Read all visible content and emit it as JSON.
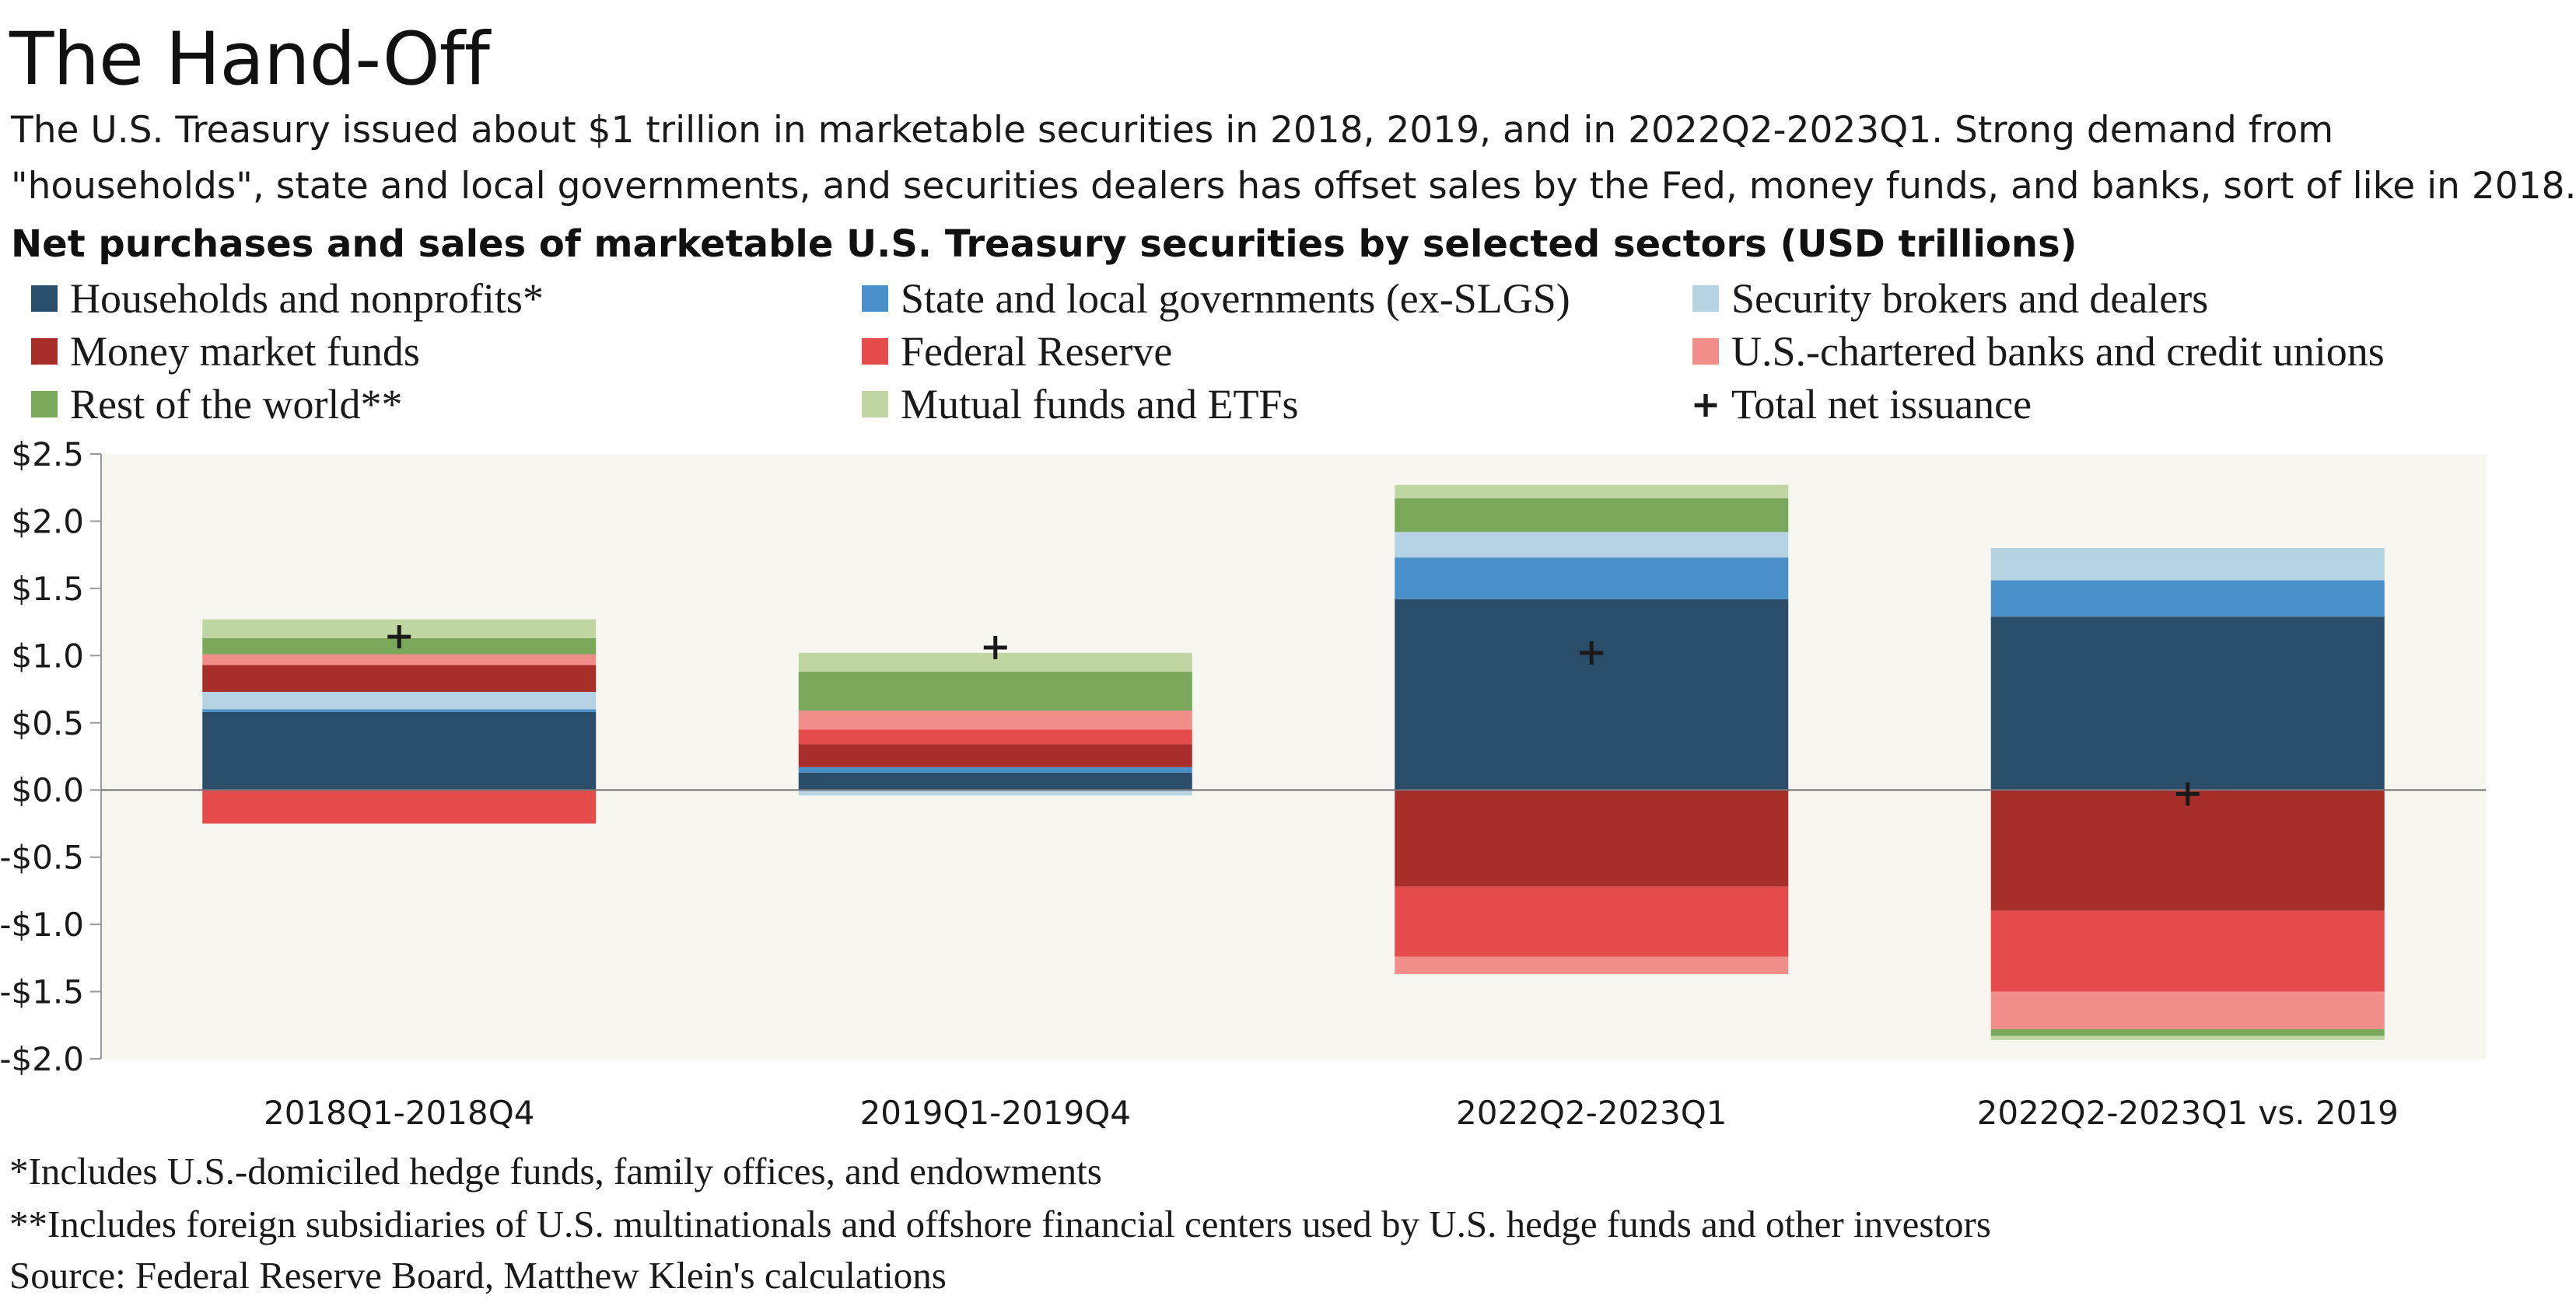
{
  "title": "The Hand-Off",
  "subtitle_line1": "The U.S. Treasury issued about $1 trillion in marketable securities in 2018, 2019, and in 2022Q2-2023Q1. Strong demand from",
  "subtitle_line2": "\"households\", state and local governments, and securities dealers has offset sales by the Fed, money funds, and banks, sort of like in 2018.",
  "chart_heading": "Net purchases and sales of marketable U.S. Treasury securities by selected sectors (USD trillions)",
  "legend": [
    {
      "label": "Households and nonprofits*",
      "color": "#2a4d6a",
      "kind": "swatch"
    },
    {
      "label": "State and local governments (ex-SLGS)",
      "color": "#4a90c8",
      "kind": "swatch"
    },
    {
      "label": "Security brokers and dealers",
      "color": "#b5d3e3",
      "kind": "swatch"
    },
    {
      "label": "Money market funds",
      "color": "#a82e2a",
      "kind": "swatch"
    },
    {
      "label": "Federal Reserve",
      "color": "#e44b4a",
      "kind": "swatch"
    },
    {
      "label": "U.S.-chartered banks and credit unions",
      "color": "#f28e8a",
      "kind": "swatch"
    },
    {
      "label": "Rest of the world**",
      "color": "#7aa85a",
      "kind": "swatch"
    },
    {
      "label": "Mutual funds and ETFs",
      "color": "#bfd6a3",
      "kind": "swatch"
    },
    {
      "label": "Total net issuance",
      "color": "#1a1a1a",
      "kind": "plus"
    }
  ],
  "chart_data": {
    "type": "bar",
    "stacked": true,
    "title": "Net purchases and sales of marketable U.S. Treasury securities by selected sectors (USD trillions)",
    "categories": [
      "2018Q1-2018Q4",
      "2019Q1-2019Q4",
      "2022Q2-2023Q1",
      "2022Q2-2023Q1 vs. 2019"
    ],
    "ylim": [
      -2.0,
      2.5
    ],
    "yticks": [
      2.5,
      2.0,
      1.5,
      1.0,
      0.5,
      0.0,
      -0.5,
      -1.0,
      -1.5,
      -2.0
    ],
    "ytick_labels": [
      "$2.5",
      "$2.0",
      "$1.5",
      "$1.0",
      "$0.5",
      "$0.0",
      "-$0.5",
      "-$1.0",
      "-$1.5",
      "-$2.0"
    ],
    "series": [
      {
        "name": "Households and nonprofits*",
        "color": "#2a4d6a",
        "values": [
          0.58,
          0.13,
          1.42,
          1.29
        ]
      },
      {
        "name": "State and local governments (ex-SLGS)",
        "color": "#4a90c8",
        "values": [
          0.02,
          0.04,
          0.31,
          0.27
        ]
      },
      {
        "name": "Security brokers and dealers",
        "color": "#b5d3e3",
        "values": [
          0.13,
          -0.04,
          0.19,
          0.24
        ]
      },
      {
        "name": "Money market funds",
        "color": "#a82e2a",
        "values": [
          0.2,
          0.17,
          -0.72,
          -0.9
        ]
      },
      {
        "name": "Federal Reserve",
        "color": "#e44b4a",
        "values": [
          -0.25,
          0.11,
          -0.52,
          -0.6
        ]
      },
      {
        "name": "U.S.-chartered banks and credit unions",
        "color": "#f28e8a",
        "values": [
          0.08,
          0.14,
          -0.13,
          -0.28
        ]
      },
      {
        "name": "Rest of the world**",
        "color": "#7aa85a",
        "values": [
          0.12,
          0.29,
          0.25,
          -0.05
        ]
      },
      {
        "name": "Mutual funds and ETFs",
        "color": "#bfd6a3",
        "values": [
          0.14,
          0.14,
          0.1,
          -0.03
        ]
      }
    ],
    "total_net_issuance": {
      "name": "Total net issuance",
      "values": [
        1.14,
        1.06,
        1.02,
        -0.03
      ]
    },
    "plot_background": "#f7f5f0",
    "zero_line": true
  },
  "footnotes": {
    "note1": "*Includes U.S.-domiciled hedge funds, family offices, and endowments",
    "note2": "**Includes foreign subsidiaries of U.S. multinationals and offshore financial centers used by U.S. hedge funds and other investors",
    "source": "Source: Federal Reserve Board, Matthew Klein's calculations"
  }
}
